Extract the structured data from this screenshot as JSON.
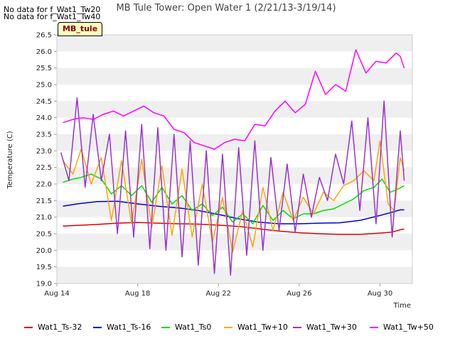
{
  "nodata_messages": [
    "No data for f_Wat1_Tw20",
    "No data for f_Wat1_Tw40"
  ],
  "site_label": "MB_tule",
  "chart_data": {
    "type": "line",
    "title": "MB Tule Tower: Open Water 1 (2/21/13-3/19/14)",
    "xlabel": "Time",
    "ylabel": "Temperature (C)",
    "xlim": [
      14,
      31.6
    ],
    "ylim": [
      19.0,
      26.5
    ],
    "x_ticks": [
      14,
      18,
      22,
      26,
      30
    ],
    "x_tick_labels": [
      "Aug 14",
      "Aug 18",
      "Aug 22",
      "Aug 26",
      "Aug 30"
    ],
    "y_ticks": [
      19.0,
      19.5,
      20.0,
      20.5,
      21.0,
      21.5,
      22.0,
      22.5,
      23.0,
      23.5,
      24.0,
      24.5,
      25.0,
      25.5,
      26.0,
      26.5
    ],
    "y_tick_labels": [
      "19.0",
      "19.5",
      "20.0",
      "20.5",
      "21.0",
      "21.5",
      "22.0",
      "22.5",
      "23.0",
      "23.5",
      "24.0",
      "24.5",
      "25.0",
      "25.5",
      "26.0",
      "26.5"
    ],
    "grid": "horizontal bands",
    "legend_position": "bottom",
    "series": [
      {
        "name": "Wat1_Ts-32",
        "color": "#dd0000",
        "x": [
          14.3,
          15,
          16,
          17,
          18,
          19,
          20,
          21,
          22,
          23,
          24,
          25,
          26,
          27,
          28,
          29,
          30,
          30.6,
          31.0,
          31.2
        ],
        "y": [
          20.73,
          20.75,
          20.78,
          20.82,
          20.84,
          20.82,
          20.8,
          20.79,
          20.76,
          20.72,
          20.65,
          20.58,
          20.53,
          20.5,
          20.48,
          20.48,
          20.52,
          20.55,
          20.62,
          20.64
        ]
      },
      {
        "name": "Wat1_Ts-16",
        "color": "#0000cc",
        "x": [
          14.3,
          15,
          16,
          17,
          18,
          19,
          20,
          21,
          22,
          23,
          24,
          25,
          26,
          27,
          28,
          29,
          30,
          30.6,
          31.0,
          31.2
        ],
        "y": [
          21.33,
          21.4,
          21.47,
          21.48,
          21.4,
          21.33,
          21.28,
          21.2,
          21.08,
          20.95,
          20.85,
          20.8,
          20.8,
          20.82,
          20.83,
          20.9,
          21.05,
          21.15,
          21.22,
          21.22
        ]
      },
      {
        "name": "Wat1_Ts0",
        "color": "#00dd00",
        "x": [
          14.3,
          14.8,
          15.2,
          15.7,
          16.2,
          16.7,
          17.2,
          17.7,
          18.2,
          18.7,
          19.2,
          19.7,
          20.2,
          20.7,
          21.2,
          21.7,
          22.2,
          22.7,
          23.2,
          23.7,
          24.2,
          24.7,
          25.2,
          25.7,
          26.2,
          26.7,
          27.2,
          27.7,
          28.2,
          28.7,
          29.2,
          29.7,
          30.1,
          30.5,
          30.9,
          31.2
        ],
        "y": [
          22.05,
          22.15,
          22.2,
          22.3,
          22.15,
          21.7,
          21.95,
          21.65,
          21.95,
          21.45,
          21.9,
          21.4,
          21.65,
          21.2,
          21.4,
          21.05,
          21.3,
          20.85,
          21.1,
          20.8,
          21.35,
          20.9,
          21.2,
          20.95,
          21.1,
          21.1,
          21.2,
          21.25,
          21.4,
          21.55,
          21.8,
          21.9,
          22.15,
          21.75,
          21.85,
          21.95
        ]
      },
      {
        "name": "Wat1_Tw+10",
        "color": "#ffa500",
        "x": [
          14.3,
          14.8,
          15.2,
          15.7,
          16.2,
          16.7,
          17.2,
          17.7,
          18.2,
          18.7,
          19.2,
          19.7,
          20.2,
          20.7,
          21.2,
          21.7,
          22.2,
          22.7,
          23.2,
          23.7,
          24.2,
          24.7,
          25.2,
          25.7,
          26.2,
          26.7,
          27.2,
          27.7,
          28.2,
          28.7,
          29.2,
          29.7,
          30.0,
          30.4,
          30.7,
          31.0,
          31.2
        ],
        "y": [
          22.7,
          22.3,
          23.05,
          22.0,
          22.8,
          20.9,
          22.7,
          20.8,
          22.75,
          20.7,
          22.55,
          20.45,
          22.45,
          20.4,
          22.0,
          20.25,
          21.6,
          19.95,
          21.2,
          20.1,
          21.9,
          20.6,
          21.75,
          20.9,
          21.6,
          21.1,
          21.75,
          21.5,
          21.95,
          22.1,
          22.4,
          22.1,
          23.3,
          21.4,
          21.2,
          22.8,
          22.4
        ]
      },
      {
        "name": "Wat1_Tw+30",
        "color": "#9a32cd",
        "x": [
          14.2,
          14.6,
          15.0,
          15.4,
          15.8,
          16.2,
          16.6,
          17.0,
          17.4,
          17.8,
          18.2,
          18.6,
          19.0,
          19.4,
          19.8,
          20.2,
          20.6,
          21.0,
          21.4,
          21.8,
          22.2,
          22.6,
          23.0,
          23.4,
          23.8,
          24.2,
          24.6,
          25.0,
          25.4,
          25.8,
          26.2,
          26.6,
          27.0,
          27.4,
          27.8,
          28.2,
          28.6,
          29.0,
          29.4,
          29.8,
          30.2,
          30.6,
          31.0,
          31.2
        ],
        "y": [
          22.95,
          22.1,
          24.6,
          21.9,
          24.1,
          22.1,
          23.5,
          20.5,
          23.6,
          20.4,
          23.8,
          20.05,
          23.7,
          20.0,
          23.5,
          19.8,
          23.3,
          19.55,
          23.0,
          19.3,
          22.9,
          19.25,
          23.1,
          19.85,
          23.3,
          20.0,
          22.8,
          20.6,
          22.6,
          20.55,
          22.3,
          21.0,
          22.2,
          21.5,
          22.9,
          22.0,
          23.9,
          21.2,
          24.0,
          20.8,
          24.5,
          20.4,
          23.6,
          22.1
        ]
      },
      {
        "name": "Wat1_Tw+50",
        "color": "#ff00ff",
        "x": [
          14.3,
          14.8,
          15.3,
          15.8,
          16.3,
          16.8,
          17.3,
          17.8,
          18.3,
          18.8,
          19.3,
          19.8,
          20.3,
          20.8,
          21.3,
          21.8,
          22.3,
          22.8,
          23.3,
          23.8,
          24.3,
          24.8,
          25.3,
          25.8,
          26.3,
          26.8,
          27.3,
          27.8,
          28.3,
          28.8,
          29.3,
          29.8,
          30.3,
          30.8,
          31.0,
          31.2
        ],
        "y": [
          23.85,
          23.95,
          24.0,
          23.95,
          24.1,
          24.2,
          24.05,
          24.2,
          24.35,
          24.15,
          24.05,
          23.65,
          23.55,
          23.25,
          23.15,
          23.05,
          23.25,
          23.35,
          23.3,
          23.8,
          23.75,
          24.2,
          24.5,
          24.15,
          24.4,
          25.4,
          24.7,
          25.0,
          24.8,
          26.05,
          25.35,
          25.7,
          25.65,
          25.95,
          25.85,
          25.5
        ]
      }
    ]
  }
}
